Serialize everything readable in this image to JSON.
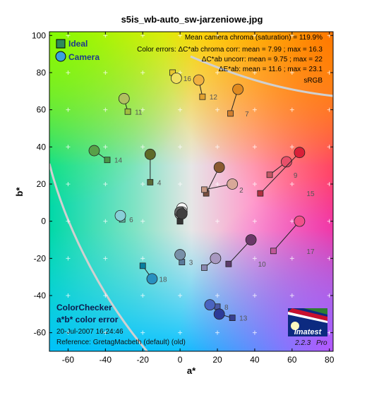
{
  "chart_data": {
    "type": "scatter",
    "title": "s5is_wb-auto_sw-jarzeniowe.jpg",
    "xlabel": "a*",
    "ylabel": "b*",
    "xlim": [
      -70,
      82
    ],
    "ylim": [
      -70,
      102
    ],
    "xticks": [
      -60,
      -40,
      -20,
      0,
      20,
      40,
      60,
      80
    ],
    "yticks": [
      -60,
      -40,
      -20,
      0,
      20,
      40,
      60,
      80,
      100
    ],
    "grid": true,
    "legend_position": "top-left",
    "legend": [
      {
        "label": "Ideal",
        "marker": "square"
      },
      {
        "label": "Camera",
        "marker": "circle"
      }
    ],
    "stats": [
      "Mean camera chroma (saturation) = 119.9%",
      "Color errors:  ΔC*ab chroma corr:  mean = 7.99 ;  max = 16.3",
      "ΔC*ab uncorr:  mean = 9.75 ;  max = 22",
      "ΔE*ab:  mean = 11.6 ;  max = 23.1",
      "sRGB"
    ],
    "patches": [
      {
        "id": 1,
        "label": "",
        "ideal": [
          14,
          15
        ],
        "camera": [
          21,
          29
        ],
        "ideal_color": "#7a5040",
        "camera_color": "#8a5a30"
      },
      {
        "id": 2,
        "label": "2",
        "ideal": [
          13,
          17
        ],
        "camera": [
          28,
          20
        ],
        "ideal_color": "#c49682",
        "camera_color": "#d8a898"
      },
      {
        "id": 3,
        "label": "3",
        "ideal": [
          1,
          -22
        ],
        "camera": [
          0,
          -18
        ],
        "ideal_color": "#5a7a9a",
        "camera_color": "#7890a8"
      },
      {
        "id": 4,
        "label": "4",
        "ideal": [
          -16,
          21
        ],
        "camera": [
          -16,
          36
        ],
        "ideal_color": "#5a6a38",
        "camera_color": "#5e6a28"
      },
      {
        "id": 5,
        "label": "",
        "ideal": [
          13,
          -25
        ],
        "camera": [
          19,
          -20
        ],
        "ideal_color": "#8a88b0",
        "camera_color": "#a898c0"
      },
      {
        "id": 6,
        "label": "6",
        "ideal": [
          -31,
          1
        ],
        "camera": [
          -32,
          3
        ],
        "ideal_color": "#66bcaa",
        "camera_color": "#88d0d8"
      },
      {
        "id": 7,
        "label": "7",
        "ideal": [
          27,
          58
        ],
        "camera": [
          31,
          71
        ],
        "ideal_color": "#d07e2e",
        "camera_color": "#e08a20"
      },
      {
        "id": 8,
        "label": "8",
        "ideal": [
          20,
          -46
        ],
        "camera": [
          16,
          -45
        ],
        "ideal_color": "#4a5aa8",
        "camera_color": "#4a64c0"
      },
      {
        "id": 9,
        "label": "9",
        "ideal": [
          48,
          25
        ],
        "camera": [
          57,
          32
        ],
        "ideal_color": "#c05864",
        "camera_color": "#e8506a"
      },
      {
        "id": 10,
        "label": "10",
        "ideal": [
          26,
          -23
        ],
        "camera": [
          38,
          -10
        ],
        "ideal_color": "#5c3c6a",
        "camera_color": "#6a3868"
      },
      {
        "id": 11,
        "label": "11",
        "ideal": [
          -28,
          59
        ],
        "camera": [
          -30,
          66
        ],
        "ideal_color": "#a0bc40",
        "camera_color": "#b0c060"
      },
      {
        "id": 12,
        "label": "12",
        "ideal": [
          12,
          67
        ],
        "camera": [
          10,
          76
        ],
        "ideal_color": "#e0a030",
        "camera_color": "#f0b040"
      },
      {
        "id": 13,
        "label": "13",
        "ideal": [
          28,
          -52
        ],
        "camera": [
          21,
          -50
        ],
        "ideal_color": "#384090",
        "camera_color": "#2c3c98"
      },
      {
        "id": 14,
        "label": "14",
        "ideal": [
          -39,
          33
        ],
        "camera": [
          -46,
          38
        ],
        "ideal_color": "#489848",
        "camera_color": "#58a048"
      },
      {
        "id": 15,
        "label": "15",
        "ideal": [
          43,
          15
        ],
        "camera": [
          64,
          37
        ],
        "ideal_color": "#b03040",
        "camera_color": "#d82038"
      },
      {
        "id": 16,
        "label": "16",
        "ideal": [
          -4,
          80
        ],
        "camera": [
          -2,
          77
        ],
        "ideal_color": "#e8c830",
        "camera_color": "#f0e060"
      },
      {
        "id": 17,
        "label": "17",
        "ideal": [
          50,
          -16
        ],
        "camera": [
          64,
          0
        ],
        "ideal_color": "#c05898",
        "camera_color": "#f0508a"
      },
      {
        "id": 18,
        "label": "18",
        "ideal": [
          -20,
          -24
        ],
        "camera": [
          -15,
          -31
        ],
        "ideal_color": "#0880a0",
        "camera_color": "#2890c0"
      },
      {
        "id": 19,
        "label": "",
        "ideal": [
          0,
          0
        ],
        "camera": [
          1,
          7
        ],
        "ideal_color": "#f0f0ec",
        "camera_color": "#f8f8f8"
      },
      {
        "id": 20,
        "label": "",
        "ideal": [
          0,
          0
        ],
        "camera": [
          1,
          5
        ],
        "ideal_color": "#c8c8c8",
        "camera_color": "#e0e0e0"
      },
      {
        "id": 21,
        "label": "",
        "ideal": [
          0,
          0
        ],
        "camera": [
          0,
          4
        ],
        "ideal_color": "#a0a0a0",
        "camera_color": "#c0c0c0"
      },
      {
        "id": 22,
        "label": "",
        "ideal": [
          0,
          0
        ],
        "camera": [
          0,
          4
        ],
        "ideal_color": "#7a7a7a",
        "camera_color": "#909090"
      },
      {
        "id": 23,
        "label": "",
        "ideal": [
          0,
          0
        ],
        "camera": [
          0,
          5
        ],
        "ideal_color": "#555555",
        "camera_color": "#666666"
      },
      {
        "id": 24,
        "label": "",
        "ideal": [
          0,
          0
        ],
        "camera": [
          1,
          4
        ],
        "ideal_color": "#343434",
        "camera_color": "#404040"
      }
    ]
  },
  "caption": {
    "line1": "ColorChecker",
    "line2": "a*b* color error",
    "date": "20-Jul-2007 16:24:46",
    "reference": "Reference: GretagMacbeth (default) (old)"
  },
  "badge": {
    "brand": "Imatest",
    "version": "2.2.3",
    "edition": "Pro",
    "colors": {
      "stripe_red": "#c8102e",
      "stripe_green": "#2e7d32",
      "panel": "#0c2a80"
    }
  }
}
